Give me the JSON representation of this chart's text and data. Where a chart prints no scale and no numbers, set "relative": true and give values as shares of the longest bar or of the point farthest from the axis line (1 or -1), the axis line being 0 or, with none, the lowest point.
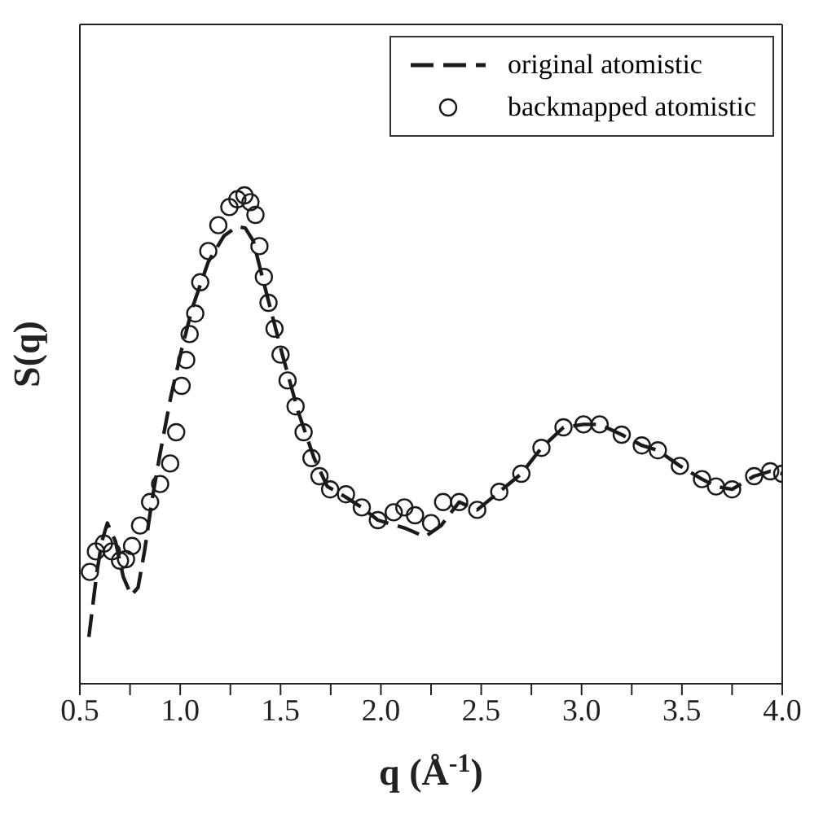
{
  "chart_data": {
    "type": "line",
    "relative": true,
    "xlabel": "q (Å$^{-1}$)",
    "ylabel": "S(q)",
    "xlim": [
      0.5,
      4.0
    ],
    "xticks": [
      {
        "value": 0.5,
        "label": "0.5"
      },
      {
        "value": 0.75,
        "label": null
      },
      {
        "value": 1.0,
        "label": "1.0"
      },
      {
        "value": 1.25,
        "label": null
      },
      {
        "value": 1.5,
        "label": "1.5"
      },
      {
        "value": 1.75,
        "label": null
      },
      {
        "value": 2.0,
        "label": "2.0"
      },
      {
        "value": 2.25,
        "label": null
      },
      {
        "value": 2.5,
        "label": "2.5"
      },
      {
        "value": 2.75,
        "label": null
      },
      {
        "value": 3.0,
        "label": "3.0"
      },
      {
        "value": 3.25,
        "label": null
      },
      {
        "value": 3.5,
        "label": "3.5"
      },
      {
        "value": 3.75,
        "label": null
      },
      {
        "value": 4.0,
        "label": "4.0"
      }
    ],
    "legend": "top right",
    "series": [
      {
        "name": "original atomistic",
        "line_style": "dashed",
        "marker": "none",
        "color": "#1a1a1a",
        "x": [
          0.545,
          0.585,
          0.61,
          0.637,
          0.677,
          0.717,
          0.756,
          0.79,
          0.822,
          0.86,
          0.9,
          0.954,
          1.007,
          1.06,
          1.14,
          1.218,
          1.284,
          1.324,
          1.364,
          1.403,
          1.456,
          1.509,
          1.588,
          1.667,
          1.733,
          1.826,
          1.905,
          1.985,
          2.117,
          2.22,
          2.3,
          2.39,
          2.48,
          2.59,
          2.7,
          2.8,
          2.91,
          3.01,
          3.09,
          3.2,
          3.3,
          3.38,
          3.49,
          3.6,
          3.67,
          3.75,
          3.86,
          3.94,
          4.0
        ],
        "values": [
          0.096,
          0.229,
          0.292,
          0.329,
          0.292,
          0.218,
          0.181,
          0.197,
          0.271,
          0.377,
          0.472,
          0.589,
          0.684,
          0.769,
          0.864,
          0.917,
          0.936,
          0.933,
          0.907,
          0.843,
          0.758,
          0.674,
          0.557,
          0.462,
          0.404,
          0.382,
          0.361,
          0.335,
          0.319,
          0.301,
          0.324,
          0.372,
          0.356,
          0.393,
          0.43,
          0.483,
          0.525,
          0.531,
          0.531,
          0.51,
          0.488,
          0.478,
          0.446,
          0.419,
          0.404,
          0.398,
          0.425,
          0.435,
          0.43
        ]
      },
      {
        "name": "backmapped atomistic",
        "type": "scatter",
        "marker": "circle",
        "color": "#1a1a1a",
        "x": [
          0.55,
          0.58,
          0.62,
          0.66,
          0.7,
          0.73,
          0.76,
          0.8,
          0.85,
          0.9,
          0.95,
          0.98,
          1.007,
          1.03,
          1.047,
          1.075,
          1.1,
          1.14,
          1.19,
          1.245,
          1.285,
          1.32,
          1.35,
          1.375,
          1.395,
          1.417,
          1.44,
          1.47,
          1.5,
          1.535,
          1.575,
          1.615,
          1.654,
          1.694,
          1.747,
          1.826,
          1.905,
          1.985,
          2.064,
          2.117,
          2.17,
          2.25,
          2.31,
          2.39,
          2.48,
          2.59,
          2.7,
          2.8,
          2.91,
          3.01,
          3.09,
          3.2,
          3.3,
          3.38,
          3.49,
          3.6,
          3.67,
          3.75,
          3.86,
          3.94,
          4.0
        ],
        "values": [
          0.229,
          0.271,
          0.287,
          0.271,
          0.252,
          0.255,
          0.282,
          0.324,
          0.372,
          0.409,
          0.451,
          0.515,
          0.61,
          0.663,
          0.716,
          0.758,
          0.822,
          0.886,
          0.939,
          0.976,
          0.992,
          1.0,
          0.986,
          0.96,
          0.896,
          0.833,
          0.78,
          0.727,
          0.674,
          0.621,
          0.568,
          0.515,
          0.462,
          0.425,
          0.398,
          0.388,
          0.361,
          0.335,
          0.351,
          0.361,
          0.345,
          0.329,
          0.372,
          0.372,
          0.356,
          0.393,
          0.43,
          0.483,
          0.525,
          0.531,
          0.531,
          0.51,
          0.488,
          0.478,
          0.446,
          0.419,
          0.404,
          0.398,
          0.425,
          0.435,
          0.43
        ]
      }
    ]
  }
}
